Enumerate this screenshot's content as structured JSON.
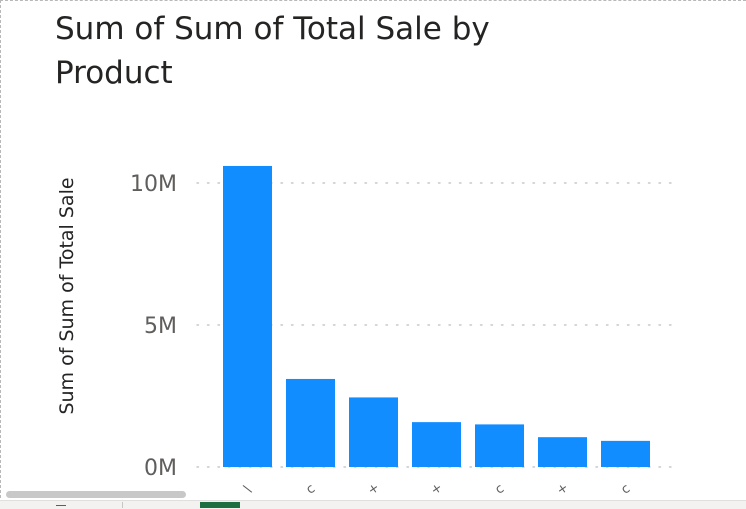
{
  "chart_data": {
    "type": "bar",
    "title": "Sum of Sum of Total Sale by Product",
    "ylabel": "Sum of Sum of Total Sale",
    "xlabel": "",
    "categories": [
      "\\",
      "c",
      "+",
      "+",
      "c",
      "+",
      "c"
    ],
    "values": [
      10600000,
      3100000,
      2450000,
      1580000,
      1500000,
      1050000,
      920000
    ],
    "ylim": [
      0,
      10000000
    ],
    "yticks": [
      {
        "value": 0,
        "label": "0M"
      },
      {
        "value": 5000000,
        "label": "5M"
      },
      {
        "value": 10000000,
        "label": "10M"
      }
    ],
    "grid": true,
    "bar_color": "#118DFF"
  }
}
